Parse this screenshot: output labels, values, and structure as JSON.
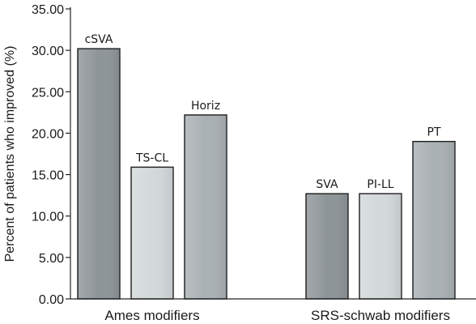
{
  "chart_data": {
    "type": "bar",
    "title": "",
    "xlabel": "",
    "ylabel": "Percent of patients who improved (%)",
    "ylim": [
      0,
      35
    ],
    "y_ticks": [
      "0.00",
      "5.00",
      "10.00",
      "15.00",
      "20.00",
      "25.00",
      "30.00",
      "35.00"
    ],
    "grid": false,
    "groups": [
      {
        "label": "Ames modifiers",
        "bars": [
          {
            "label": "cSVA",
            "value": 30.2,
            "color": "#8e9599"
          },
          {
            "label": "TS-CL",
            "value": 15.9,
            "color": "#d3d8da"
          },
          {
            "label": "Horiz",
            "value": 22.2,
            "color": "#aab1b4"
          }
        ]
      },
      {
        "label": "SRS-schwab modifiers",
        "bars": [
          {
            "label": "SVA",
            "value": 12.7,
            "color": "#8e9599"
          },
          {
            "label": "PI-LL",
            "value": 12.7,
            "color": "#d3d8da"
          },
          {
            "label": "PT",
            "value": 19.0,
            "color": "#aab1b4"
          }
        ]
      }
    ]
  }
}
